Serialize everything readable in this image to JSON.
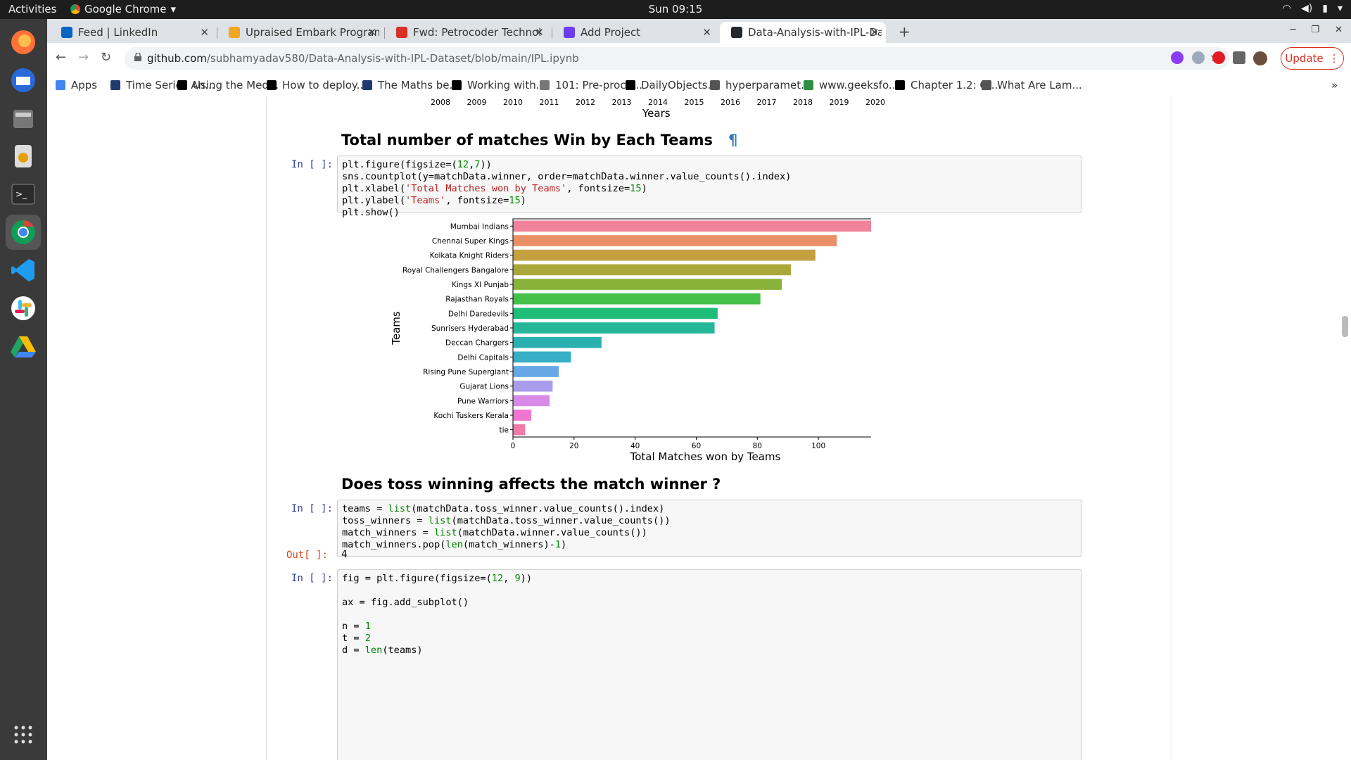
{
  "topbar": {
    "activities": "Activities",
    "app": "Google Chrome",
    "clock": "Sun 09:15"
  },
  "dock": {
    "icons": [
      "firefox-icon",
      "thunderbird-icon",
      "files-icon",
      "rhythmbox-icon",
      "terminal-icon",
      "chrome-icon",
      "vscode-icon",
      "slack-icon",
      "drive-icon",
      "app-grid-icon"
    ]
  },
  "tabs": [
    {
      "title": "Feed | LinkedIn",
      "color": "#0a66c2"
    },
    {
      "title": "Upraised Embark Program",
      "color": "#f4a522"
    },
    {
      "title": "Fwd: Petrocoder Technol",
      "color": "#d93025"
    },
    {
      "title": "Add Project",
      "color": "#6c3df4"
    },
    {
      "title": "Data-Analysis-with-IPL-Da",
      "color": "#24292e"
    }
  ],
  "omnibox": {
    "host": "github.com",
    "path": "/subhamyadav580/Data-Analysis-with-IPL-Dataset/blob/main/IPL.ipynb"
  },
  "update_label": "Update",
  "bookmarks": [
    {
      "label": "Apps",
      "color": "#4285f4"
    },
    {
      "label": "Time Series An...",
      "color": "#1e3a6e"
    },
    {
      "label": "Using the Med...",
      "color": "#000"
    },
    {
      "label": "How to deploy...",
      "color": "#000"
    },
    {
      "label": "The Maths be...",
      "color": "#1e3a6e"
    },
    {
      "label": "Working with...",
      "color": "#000"
    },
    {
      "label": "101: Pre-proce...",
      "color": "#777"
    },
    {
      "label": "DailyObjects...",
      "color": "#000"
    },
    {
      "label": "hyperparamet...",
      "color": "#555"
    },
    {
      "label": "www.geeksfo...",
      "color": "#2f8d46"
    },
    {
      "label": "Chapter 1.2: G...",
      "color": "#000"
    },
    {
      "label": "What Are Lam...",
      "color": "#555"
    }
  ],
  "notebook": {
    "prev_axis": {
      "years": [
        "2008",
        "2009",
        "2010",
        "2011",
        "2012",
        "2013",
        "2014",
        "2015",
        "2016",
        "2017",
        "2018",
        "2019",
        "2020"
      ],
      "xlabel": "Years"
    },
    "heading1": "Total number of matches Win by Each Teams",
    "pilcrow": "¶",
    "in_prompt": "In [ ]:",
    "out_prompt": "Out[ ]:",
    "cell1": [
      "plt.figure(figsize=(12,7))",
      "sns.countplot(y=matchData.winner, order=matchData.winner.value_counts().index)",
      "plt.xlabel('Total Matches won by Teams', fontsize=15)",
      "plt.ylabel('Teams', fontsize=15)",
      "plt.show()"
    ],
    "heading2": "Does toss winning affects the match winner ?",
    "cell2": [
      "teams = list(matchData.toss_winner.value_counts().index)",
      "toss_winners = list(matchData.toss_winner.value_counts())",
      "match_winners = list(matchData.winner.value_counts())",
      "match_winners.pop(len(match_winners)-1)"
    ],
    "out2": "4",
    "cell3": [
      "fig = plt.figure(figsize=(12, 9))",
      "",
      "ax = fig.add_subplot()",
      "",
      "n = 1",
      "t = 2",
      "d = len(teams)"
    ]
  },
  "chart_data": {
    "type": "bar",
    "orientation": "horizontal",
    "categories": [
      "Mumbai Indians",
      "Chennai Super Kings",
      "Kolkata Knight Riders",
      "Royal Challengers Bangalore",
      "Kings XI Punjab",
      "Rajasthan Royals",
      "Delhi Daredevils",
      "Sunrisers Hyderabad",
      "Deccan Chargers",
      "Delhi Capitals",
      "Rising Pune Supergiant",
      "Gujarat Lions",
      "Pune Warriors",
      "Kochi Tuskers Kerala",
      "tie"
    ],
    "values": [
      120,
      106,
      99,
      91,
      88,
      81,
      67,
      66,
      29,
      19,
      15,
      13,
      12,
      6,
      4
    ],
    "colors": [
      "#f0829a",
      "#ea9068",
      "#c4a040",
      "#aaa83a",
      "#88b23a",
      "#46c048",
      "#1ebe78",
      "#24b898",
      "#2ab0b0",
      "#36aec6",
      "#66a8e6",
      "#aa9cec",
      "#d88ae6",
      "#f076d0",
      "#f07aac"
    ],
    "xlabel": "Total Matches won by Teams",
    "ylabel": "Teams",
    "xticks": [
      0,
      20,
      40,
      60,
      80,
      100,
      120
    ],
    "xlim": [
      0,
      126
    ]
  }
}
